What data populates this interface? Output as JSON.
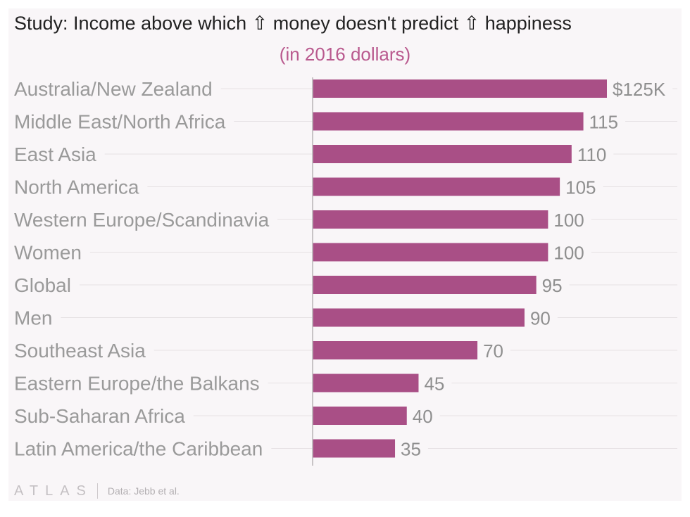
{
  "chart_data": {
    "type": "bar",
    "orientation": "horizontal",
    "title": "Study: Income above which ⇧ money doesn't predict ⇧ happiness",
    "subtitle": "(in 2016 dollars)",
    "categories": [
      "Australia/New Zealand",
      "Middle East/North Africa",
      "East Asia",
      "North America",
      "Western Europe/Scandinavia",
      "Women",
      "Global",
      "Men",
      "Southeast Asia",
      "Eastern Europe/the Balkans",
      "Sub-Saharan Africa",
      "Latin America/the Caribbean"
    ],
    "values": [
      125,
      115,
      110,
      105,
      100,
      100,
      95,
      90,
      70,
      45,
      40,
      35
    ],
    "value_labels": [
      "$125K",
      "115",
      "110",
      "105",
      "100",
      "100",
      "95",
      "90",
      "70",
      "45",
      "40",
      "35"
    ],
    "xlim": [
      0,
      130
    ],
    "unit": "thousand 2016 USD",
    "grid": true,
    "colors": {
      "bar": "#a94f86",
      "subtitle": "#b9598e"
    }
  },
  "footer": {
    "logo": "ATLAS",
    "source": "Data: Jebb et al."
  }
}
